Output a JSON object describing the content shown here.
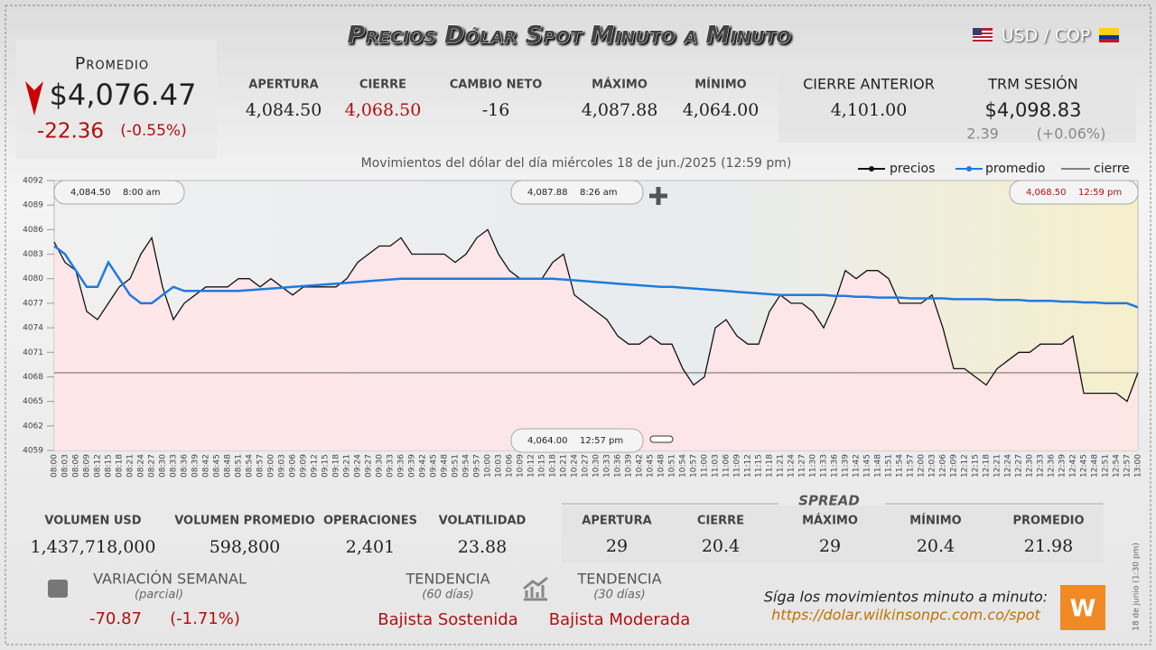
{
  "header": {
    "title": "Precios Dólar Spot Minuto a Minuto",
    "pair": "USD / COP"
  },
  "promedio": {
    "label": "Promedio",
    "value": "$4,076.47",
    "change": "-22.36",
    "change_pct": "(-0.55%)"
  },
  "stats": [
    {
      "label": "APERTURA",
      "value": "4,084.50"
    },
    {
      "label": "CIERRE",
      "value": "4,068.50",
      "color": "#b01010"
    },
    {
      "label": "CAMBIO NETO",
      "value": "-16"
    },
    {
      "label": "MÁXIMO",
      "value": "4,087.88"
    },
    {
      "label": "MÍNIMO",
      "value": "4,064.00"
    }
  ],
  "previous": [
    {
      "label": "CIERRE ANTERIOR",
      "value": "4,101.00"
    },
    {
      "label": "TRM SESIÓN",
      "value": "$4,098.83",
      "change": "2.39",
      "change_pct": "(+0.06%)"
    }
  ],
  "chart_data": {
    "type": "line",
    "subtitle": "Movimientos del dólar del día miércoles 18 de jun./2025 (12:59 pm)",
    "categories": [
      "08:00",
      "08:03",
      "08:06",
      "08:09",
      "08:12",
      "08:15",
      "08:18",
      "08:21",
      "08:24",
      "08:27",
      "08:30",
      "08:33",
      "08:36",
      "08:39",
      "08:42",
      "08:45",
      "08:48",
      "08:51",
      "08:54",
      "08:57",
      "09:00",
      "09:03",
      "09:06",
      "09:09",
      "09:12",
      "09:15",
      "09:18",
      "09:21",
      "09:24",
      "09:27",
      "09:30",
      "09:33",
      "09:36",
      "09:39",
      "09:42",
      "09:45",
      "09:48",
      "09:51",
      "09:54",
      "09:57",
      "10:00",
      "10:03",
      "10:06",
      "10:09",
      "10:12",
      "10:15",
      "10:18",
      "10:21",
      "10:24",
      "10:27",
      "10:30",
      "10:33",
      "10:36",
      "10:39",
      "10:42",
      "10:45",
      "10:48",
      "10:51",
      "10:54",
      "10:57",
      "11:00",
      "11:03",
      "11:06",
      "11:09",
      "11:12",
      "11:15",
      "11:18",
      "11:21",
      "11:24",
      "11:27",
      "11:30",
      "11:33",
      "11:36",
      "11:39",
      "11:42",
      "11:45",
      "11:48",
      "11:51",
      "11:54",
      "11:57",
      "12:00",
      "12:03",
      "12:06",
      "12:09",
      "12:12",
      "12:15",
      "12:18",
      "12:21",
      "12:24",
      "12:27",
      "12:30",
      "12:33",
      "12:36",
      "12:39",
      "12:42",
      "12:45",
      "12:48",
      "12:51",
      "12:54",
      "12:57",
      "13:00"
    ],
    "series": [
      {
        "name": "precios",
        "color": "#111111",
        "values": [
          4084.5,
          4082,
          4081,
          4076,
          4075,
          4077,
          4079,
          4080,
          4083,
          4085,
          4079,
          4075,
          4077,
          4078,
          4079,
          4079,
          4079,
          4080,
          4080,
          4079,
          4080,
          4079,
          4078,
          4079,
          4079,
          4079,
          4079,
          4080,
          4082,
          4083,
          4084,
          4084,
          4085,
          4083,
          4083,
          4083,
          4083,
          4082,
          4083,
          4085,
          4086,
          4083,
          4081,
          4080,
          4080,
          4080,
          4082,
          4083,
          4078,
          4077,
          4076,
          4075,
          4073,
          4072,
          4072,
          4073,
          4072,
          4072,
          4069,
          4067,
          4068,
          4074,
          4075,
          4073,
          4072,
          4072,
          4076,
          4078,
          4077,
          4077,
          4076,
          4074,
          4077,
          4081,
          4080,
          4081,
          4081,
          4080,
          4077,
          4077,
          4077,
          4078,
          4074,
          4069,
          4069,
          4068,
          4067,
          4069,
          4070,
          4071,
          4071,
          4072,
          4072,
          4072,
          4073,
          4066,
          4066,
          4066,
          4066,
          4065,
          4068.5
        ]
      },
      {
        "name": "promedio",
        "color": "#1f7ae0",
        "values": [
          4084,
          4083,
          4081,
          4079,
          4079,
          4082,
          4080,
          4078,
          4077,
          4077,
          4078,
          4079,
          4078.5,
          4078.5,
          4078.5,
          4078.5,
          4078.5,
          4078.5,
          4078.6,
          4078.7,
          4078.8,
          4078.9,
          4079,
          4079.1,
          4079.2,
          4079.3,
          4079.4,
          4079.5,
          4079.6,
          4079.7,
          4079.8,
          4079.9,
          4080,
          4080,
          4080,
          4080,
          4080,
          4080,
          4080,
          4080,
          4080,
          4080,
          4080,
          4080,
          4080,
          4080,
          4080,
          4079.9,
          4079.8,
          4079.7,
          4079.6,
          4079.5,
          4079.4,
          4079.3,
          4079.2,
          4079.1,
          4079,
          4079,
          4078.9,
          4078.8,
          4078.7,
          4078.6,
          4078.5,
          4078.4,
          4078.3,
          4078.2,
          4078.1,
          4078,
          4078,
          4078,
          4078,
          4078,
          4077.9,
          4077.9,
          4077.8,
          4077.8,
          4077.7,
          4077.7,
          4077.7,
          4077.6,
          4077.6,
          4077.6,
          4077.6,
          4077.5,
          4077.5,
          4077.5,
          4077.5,
          4077.4,
          4077.4,
          4077.4,
          4077.3,
          4077.3,
          4077.3,
          4077.2,
          4077.2,
          4077.1,
          4077.1,
          4077,
          4077,
          4077,
          4076.5
        ]
      }
    ],
    "reference": {
      "name": "cierre",
      "color": "#555555",
      "value": 4068.5
    },
    "ylim": [
      4059,
      4092
    ],
    "yticks": [
      4059,
      4062,
      4065,
      4068,
      4071,
      4074,
      4077,
      4080,
      4083,
      4086,
      4089,
      4092
    ],
    "annotations": [
      {
        "value": "4,084.50",
        "time": "8:00 am"
      },
      {
        "value": "4,087.88",
        "time": "8:26 am"
      },
      {
        "value": "4,068.50",
        "time": "12:59 pm"
      },
      {
        "value": "4,064.00",
        "time": "12:57 pm"
      }
    ]
  },
  "volume": [
    {
      "label": "VOLUMEN USD",
      "value": "1,437,718,000"
    },
    {
      "label": "VOLUMEN PROMEDIO",
      "value": "598,800"
    },
    {
      "label": "OPERACIONES",
      "value": "2,401"
    },
    {
      "label": "VOLATILIDAD",
      "value": "23.88"
    }
  ],
  "spread": {
    "title": "SPREAD",
    "items": [
      {
        "label": "APERTURA",
        "value": "29"
      },
      {
        "label": "CIERRE",
        "value": "20.4"
      },
      {
        "label": "MÁXIMO",
        "value": "29"
      },
      {
        "label": "MÍNIMO",
        "value": "20.4"
      },
      {
        "label": "PROMEDIO",
        "value": "21.98"
      }
    ]
  },
  "weekly": {
    "label": "VARIACIÓN SEMANAL",
    "note": "(parcial)",
    "change": "-70.87",
    "change_pct": "(-1.71%)"
  },
  "trends": [
    {
      "label": "TENDENCIA",
      "note": "(60 días)",
      "value": "Bajista Sostenida"
    },
    {
      "label": "TENDENCIA",
      "note": "(30 días)",
      "value": "Bajista Moderada"
    }
  ],
  "footer": {
    "follow": "Síga los movimientos minuto a minuto:",
    "url": "https://dolar.wilkinsonpc.com.co/spot",
    "stamp": "18 de junio (1:30 pm)"
  }
}
